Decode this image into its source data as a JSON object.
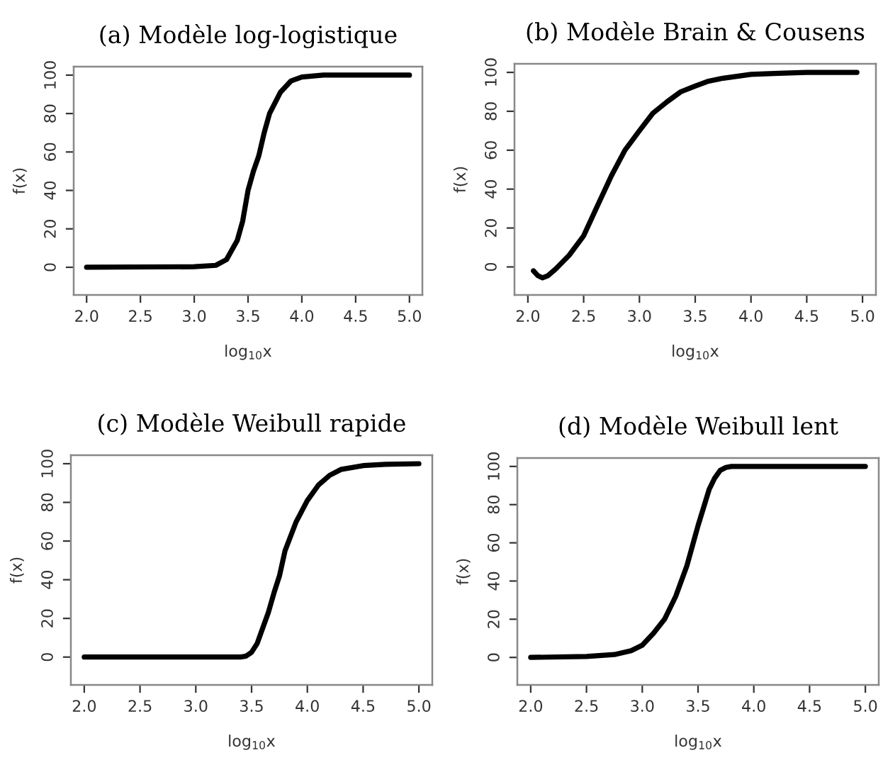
{
  "chart_data": [
    {
      "type": "line",
      "title": "(a) Modèle log-logistique",
      "xlabel": "log$_{10}$x",
      "ylabel": "f(x)",
      "xlim": [
        1.88,
        5.12
      ],
      "ylim": [
        -14.4,
        104.4
      ],
      "xticks": [
        {
          "value": 2,
          "label": "2.0"
        },
        {
          "value": 2.5,
          "label": "2.5"
        },
        {
          "value": 3,
          "label": "3.0"
        },
        {
          "value": 3.5,
          "label": "3.5"
        },
        {
          "value": 4,
          "label": "4.0"
        },
        {
          "value": 4.5,
          "label": "4.5"
        },
        {
          "value": 5,
          "label": "5.0"
        }
      ],
      "yticks": [
        0,
        20,
        40,
        60,
        80,
        100
      ],
      "series": [
        {
          "color": "#000000",
          "x": [
            2.0,
            3.0,
            3.2,
            3.3,
            3.4,
            3.45,
            3.5,
            3.55,
            3.6,
            3.65,
            3.7,
            3.8,
            3.9,
            4.0,
            4.2,
            5.0
          ],
          "values": [
            0,
            0.3,
            1,
            4,
            14,
            24,
            40,
            50,
            58,
            70,
            80,
            91,
            97,
            99,
            100,
            100
          ]
        }
      ]
    },
    {
      "type": "line",
      "title": "(b) Modèle Brain & Cousens",
      "xlabel": "log$_{10}$x",
      "ylabel": "f(x)",
      "xlim": [
        1.88,
        5.12
      ],
      "ylim": [
        -14.4,
        104.4
      ],
      "xticks": [
        {
          "value": 2,
          "label": "2.0"
        },
        {
          "value": 2.5,
          "label": "2.5"
        },
        {
          "value": 3,
          "label": "3.0"
        },
        {
          "value": 3.5,
          "label": "3.5"
        },
        {
          "value": 4,
          "label": "4.0"
        },
        {
          "value": 4.5,
          "label": "4.5"
        },
        {
          "value": 5,
          "label": "5.0"
        }
      ],
      "yticks": [
        0,
        20,
        40,
        60,
        80,
        100
      ],
      "series": [
        {
          "color": "#000000",
          "x": [
            2.05,
            2.09,
            2.13,
            2.18,
            2.25,
            2.37,
            2.5,
            2.62,
            2.75,
            2.87,
            3.0,
            3.12,
            3.25,
            3.37,
            3.5,
            3.62,
            3.75,
            4.0,
            4.25,
            4.5,
            4.95
          ],
          "values": [
            -2,
            -4.5,
            -5.6,
            -4.5,
            -1,
            6,
            16,
            31,
            47,
            60,
            70,
            79,
            85,
            90,
            93,
            95.5,
            97,
            99,
            99.5,
            100,
            100
          ]
        }
      ]
    },
    {
      "type": "line",
      "title": "(c) Modèle Weibull rapide",
      "xlabel": "log$_{10}$x",
      "ylabel": "f(x)",
      "xlim": [
        1.88,
        5.12
      ],
      "ylim": [
        -14.4,
        104.4
      ],
      "xticks": [
        {
          "value": 2,
          "label": "2.0"
        },
        {
          "value": 2.5,
          "label": "2.5"
        },
        {
          "value": 3,
          "label": "3.0"
        },
        {
          "value": 3.5,
          "label": "3.5"
        },
        {
          "value": 4,
          "label": "4.0"
        },
        {
          "value": 4.5,
          "label": "4.5"
        },
        {
          "value": 5,
          "label": "5.0"
        }
      ],
      "yticks": [
        0,
        20,
        40,
        60,
        80,
        100
      ],
      "series": [
        {
          "color": "#000000",
          "x": [
            2.0,
            3.0,
            3.4,
            3.45,
            3.5,
            3.55,
            3.6,
            3.65,
            3.7,
            3.75,
            3.8,
            3.9,
            4.0,
            4.1,
            4.2,
            4.3,
            4.5,
            4.7,
            5.0
          ],
          "values": [
            0,
            0,
            0,
            0.5,
            2.5,
            7,
            15,
            23,
            33,
            42,
            55,
            70,
            81,
            89,
            94,
            97,
            99,
            99.7,
            100
          ]
        }
      ]
    },
    {
      "type": "line",
      "title": "(d) Modèle Weibull lent",
      "xlabel": "log$_{10}$x",
      "ylabel": "f(x)",
      "xlim": [
        1.88,
        5.12
      ],
      "ylim": [
        -14.4,
        104.4
      ],
      "xticks": [
        {
          "value": 2,
          "label": "2.0"
        },
        {
          "value": 2.5,
          "label": "2.5"
        },
        {
          "value": 3,
          "label": "3.0"
        },
        {
          "value": 3.5,
          "label": "3.5"
        },
        {
          "value": 4,
          "label": "4.0"
        },
        {
          "value": 4.5,
          "label": "4.5"
        },
        {
          "value": 5,
          "label": "5.0"
        }
      ],
      "yticks": [
        0,
        20,
        40,
        60,
        80,
        100
      ],
      "series": [
        {
          "color": "#000000",
          "x": [
            2.0,
            2.5,
            2.75,
            2.9,
            3.0,
            3.1,
            3.2,
            3.3,
            3.4,
            3.5,
            3.6,
            3.65,
            3.7,
            3.75,
            3.8,
            5.0
          ],
          "values": [
            0,
            0.5,
            1.5,
            3.5,
            6.4,
            12.6,
            20,
            32,
            48,
            69,
            88,
            94,
            98,
            99.5,
            100,
            100
          ]
        }
      ]
    }
  ]
}
